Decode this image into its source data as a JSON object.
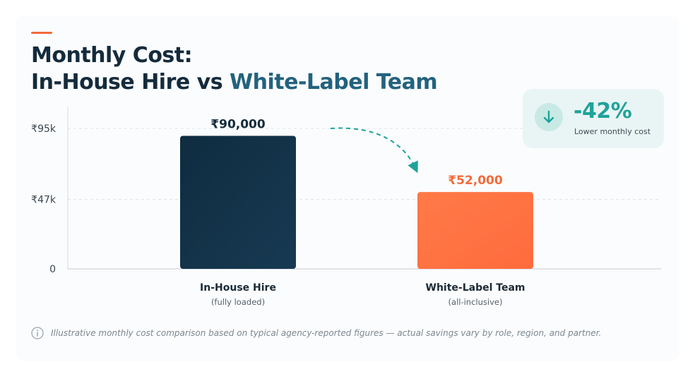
{
  "title": {
    "line1": "Monthly Cost:",
    "line2_prefix": "In-House Hire vs ",
    "line2_highlight": "White-Label Team"
  },
  "badge": {
    "value": "-42%",
    "caption": "Lower monthly cost",
    "icon": "arrow-down-icon"
  },
  "footnote": {
    "icon": "info-icon",
    "text": "Illustrative monthly cost comparison based on typical agency-reported figures — actual savings vary by role, region, and partner."
  },
  "colors": {
    "title": "#142b3c",
    "highlight": "#23627e",
    "bar_inhouse": "#173a52",
    "bar_whitelabel": "#ff6b3d",
    "label_whitelabel": "#f26b3a",
    "teal": "#1fa39a",
    "accent": "#f26b3a"
  },
  "chart_data": {
    "type": "bar",
    "categories": [
      "In-House Hire",
      "White-Label Team"
    ],
    "subcategories": [
      "(fully loaded)",
      "(all-inclusive)"
    ],
    "values": [
      90000,
      52000
    ],
    "value_labels": [
      "₹90,000",
      "₹52,000"
    ],
    "yticks": [
      0,
      47000,
      95000
    ],
    "ytick_labels": [
      "0",
      "₹47k",
      "₹95k"
    ],
    "ylim": [
      0,
      95000
    ],
    "grid": true,
    "xlabel": "",
    "ylabel": ""
  }
}
